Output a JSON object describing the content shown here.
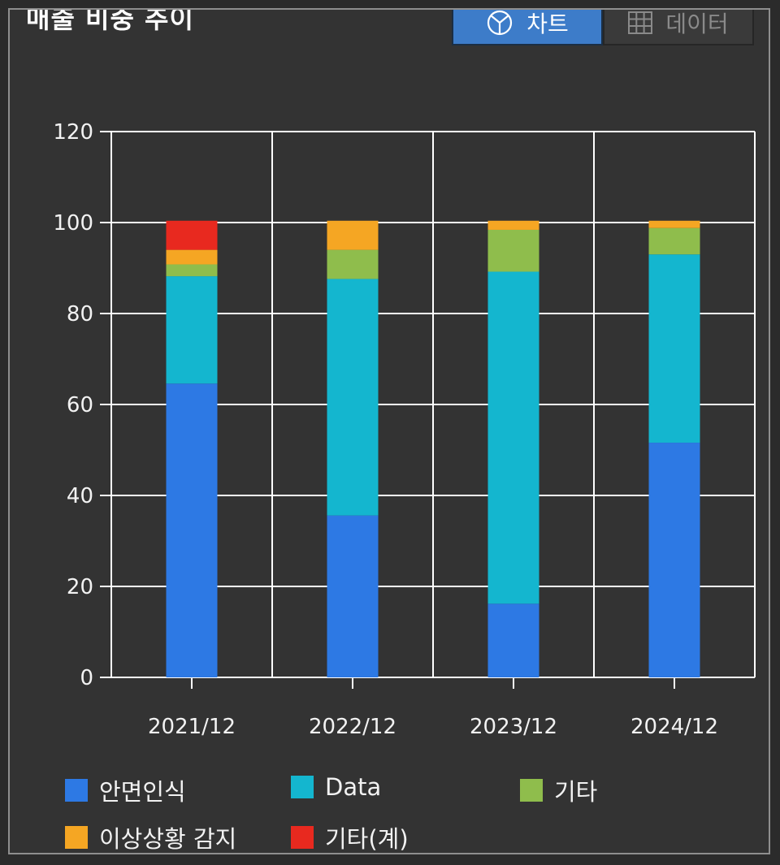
{
  "header": {
    "title": "매출 비중 추이",
    "tab_chart": "차트",
    "tab_data": "데이터"
  },
  "colors": {
    "panel_bg": "#333333",
    "grid": "#ffffff",
    "face_recognition": "#2d79e4",
    "data": "#14b6cf",
    "other": "#8fbd4c",
    "anomaly_detection": "#f5a623",
    "other_total": "#e8291f"
  },
  "chart_data": {
    "type": "bar",
    "stacked": true,
    "title": "매출 비중 추이",
    "categories": [
      "2021/12",
      "2022/12",
      "2023/12",
      "2024/12"
    ],
    "ylim": [
      0,
      120
    ],
    "yticks": [
      0,
      20,
      40,
      60,
      80,
      100,
      120
    ],
    "grid": true,
    "legend_position": "bottom",
    "series": [
      {
        "name": "안면인식",
        "color": "#2d79e4",
        "values": [
          64.6,
          35.6,
          16.2,
          51.6
        ]
      },
      {
        "name": "Data",
        "color": "#14b6cf",
        "values": [
          23.6,
          52.0,
          73.0,
          41.4
        ]
      },
      {
        "name": "기타",
        "color": "#8fbd4c",
        "values": [
          2.6,
          6.4,
          9.2,
          5.8
        ]
      },
      {
        "name": "이상상황 감지",
        "color": "#f5a623",
        "values": [
          3.2,
          6.4,
          2.0,
          1.6
        ]
      },
      {
        "name": "기타(계)",
        "color": "#e8291f",
        "values": [
          6.4,
          0,
          0,
          0
        ]
      }
    ]
  }
}
